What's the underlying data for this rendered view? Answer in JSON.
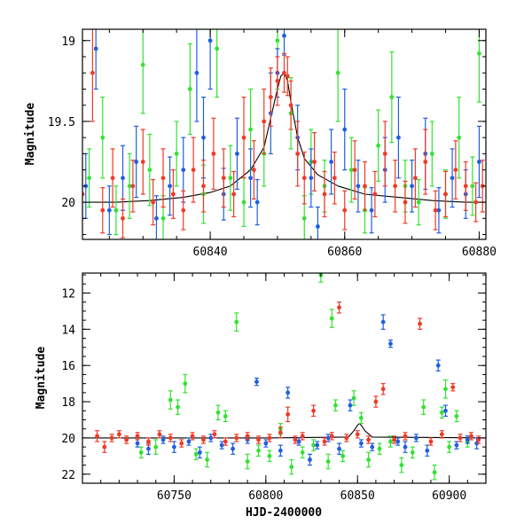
{
  "colors": {
    "green": "#33e233",
    "blue": "#1f5fe0",
    "red": "#f03a26",
    "model": "#000000"
  },
  "chart_data": [
    {
      "type": "scatter",
      "panel": "top",
      "title": "",
      "xlabel": "",
      "ylabel": "Magnitude",
      "xlim": [
        60821,
        60881
      ],
      "ylim": [
        20.23,
        18.93
      ],
      "y_inverted": true,
      "xticks": [
        "60840",
        "60860",
        "60880"
      ],
      "yticks": [
        "19",
        "19.5",
        "20"
      ],
      "grid": false,
      "legend": "none",
      "model_curve": {
        "x": [
          60821,
          60826,
          60831,
          60836,
          60840,
          60843,
          60846,
          60848,
          60849,
          60850,
          60850.5,
          60851,
          60851.5,
          60852,
          60853,
          60854,
          60856,
          60859,
          60863,
          60868,
          60873,
          60878,
          60881
        ],
        "y": [
          20.0,
          20.0,
          19.99,
          19.97,
          19.94,
          19.9,
          19.8,
          19.66,
          19.48,
          19.3,
          19.22,
          19.2,
          19.25,
          19.38,
          19.6,
          19.73,
          19.83,
          19.9,
          19.95,
          19.97,
          19.99,
          20.0,
          20.0
        ]
      },
      "series": [
        {
          "color": "green",
          "x": [
            60822,
            60824,
            60826,
            60828,
            60830,
            60831,
            60833,
            60835,
            60837,
            60839,
            60841,
            60843,
            60845,
            60846,
            60848,
            60850,
            60852,
            60854,
            60855,
            60857,
            60859,
            60861,
            60863,
            60865,
            60867,
            60869,
            60871,
            60873,
            60875,
            60877,
            60879,
            60880
          ],
          "y": [
            19.85,
            19.6,
            20.05,
            19.9,
            19.15,
            19.8,
            20.1,
            19.7,
            19.3,
            19.95,
            19.05,
            19.85,
            20.0,
            19.55,
            19.7,
            19.0,
            19.45,
            20.1,
            19.75,
            19.9,
            19.2,
            19.8,
            20.05,
            19.65,
            19.35,
            19.9,
            20.0,
            19.7,
            19.95,
            19.6,
            19.9,
            19.08
          ],
          "err": [
            0.18,
            0.25,
            0.15,
            0.2,
            0.3,
            0.22,
            0.14,
            0.2,
            0.28,
            0.18,
            0.3,
            0.2,
            0.15,
            0.25,
            0.2,
            0.3,
            0.22,
            0.14,
            0.2,
            0.16,
            0.3,
            0.2,
            0.14,
            0.22,
            0.28,
            0.16,
            0.14,
            0.2,
            0.15,
            0.25,
            0.18,
            0.3
          ]
        },
        {
          "color": "blue",
          "x": [
            60821.5,
            60823,
            60825,
            60827,
            60829,
            60832,
            60834,
            60836,
            60838,
            60839,
            60840,
            60842,
            60844,
            60846,
            60847,
            60849,
            60850,
            60851,
            60853,
            60855,
            60856,
            60858,
            60860,
            60862,
            60864,
            60866,
            60868,
            60870,
            60872,
            60874,
            60876,
            60878,
            60880
          ],
          "y": [
            19.9,
            19.05,
            20.05,
            19.85,
            19.75,
            20.1,
            19.9,
            19.8,
            19.2,
            19.6,
            19.0,
            19.95,
            19.7,
            19.85,
            20.0,
            19.45,
            19.2,
            18.97,
            19.6,
            19.85,
            20.15,
            19.75,
            19.55,
            19.9,
            20.05,
            19.8,
            19.6,
            19.9,
            19.7,
            20.05,
            19.85,
            19.95,
            19.75
          ],
          "err": [
            0.2,
            0.25,
            0.15,
            0.2,
            0.22,
            0.14,
            0.18,
            0.2,
            0.3,
            0.25,
            0.3,
            0.16,
            0.22,
            0.18,
            0.14,
            0.25,
            0.15,
            0.12,
            0.2,
            0.18,
            0.12,
            0.2,
            0.25,
            0.16,
            0.14,
            0.2,
            0.25,
            0.16,
            0.22,
            0.14,
            0.18,
            0.15,
            0.22
          ]
        },
        {
          "color": "red",
          "x": [
            60821,
            60822.5,
            60824,
            60825.5,
            60827,
            60828.5,
            60830,
            60831.5,
            60833,
            60834.5,
            60836,
            60837.5,
            60839,
            60840.5,
            60842,
            60843.5,
            60845,
            60846.5,
            60848,
            60849,
            60850,
            60851,
            60851.5,
            60852,
            60853,
            60854,
            60855.5,
            60857,
            60858.5,
            60860,
            60861.5,
            60863,
            60864.5,
            60866,
            60867.5,
            60869,
            60870.5,
            60872,
            60873.5,
            60875,
            60876.5,
            60878,
            60879.5,
            60880.5
          ],
          "y": [
            19.95,
            19.2,
            20.05,
            19.85,
            20.1,
            19.9,
            19.75,
            20.0,
            19.85,
            19.95,
            20.05,
            19.8,
            19.9,
            19.7,
            19.85,
            19.95,
            19.6,
            19.8,
            19.5,
            19.35,
            19.25,
            19.2,
            19.22,
            19.4,
            19.7,
            19.85,
            19.75,
            19.95,
            19.85,
            20.05,
            19.8,
            19.9,
            19.95,
            19.7,
            19.9,
            20.0,
            19.85,
            19.75,
            20.05,
            19.95,
            19.8,
            19.9,
            20.0,
            19.9
          ],
          "err": [
            0.15,
            0.3,
            0.14,
            0.18,
            0.12,
            0.16,
            0.2,
            0.14,
            0.18,
            0.15,
            0.12,
            0.2,
            0.16,
            0.22,
            0.18,
            0.14,
            0.25,
            0.18,
            0.2,
            0.18,
            0.15,
            0.12,
            0.12,
            0.15,
            0.2,
            0.16,
            0.18,
            0.14,
            0.16,
            0.12,
            0.18,
            0.15,
            0.14,
            0.2,
            0.16,
            0.13,
            0.18,
            0.2,
            0.12,
            0.14,
            0.18,
            0.15,
            0.12,
            0.16
          ]
        }
      ]
    },
    {
      "type": "scatter",
      "panel": "bottom",
      "title": "",
      "xlabel": "HJD-2400000",
      "ylabel": "Magnitude",
      "xlim": [
        60700,
        60920
      ],
      "ylim": [
        22.5,
        10.9
      ],
      "y_inverted": true,
      "xticks": [
        "60750",
        "60800",
        "60850",
        "60900"
      ],
      "yticks": [
        "12",
        "14",
        "16",
        "18",
        "20",
        "22"
      ],
      "grid": false,
      "legend": "none",
      "model_curve": {
        "x": [
          60700,
          60800,
          60845,
          60848,
          60850,
          60851,
          60852,
          60854,
          60858,
          60920
        ],
        "y": [
          20.0,
          20.0,
          19.95,
          19.6,
          19.3,
          19.2,
          19.3,
          19.6,
          19.95,
          20.0
        ]
      },
      "series": [
        {
          "color": "green",
          "x": [
            60732,
            60740,
            60748,
            60752,
            60756,
            60762,
            60768,
            60774,
            60778,
            60784,
            60790,
            60796,
            60802,
            60808,
            60814,
            60820,
            60826,
            60830,
            60834,
            60836,
            60838,
            60842,
            60848,
            60852,
            60856,
            60862,
            60868,
            60874,
            60880,
            60886,
            60892,
            60896,
            60898,
            60900,
            60904,
            60910
          ],
          "y": [
            20.8,
            20.5,
            17.9,
            18.3,
            17.0,
            20.9,
            21.2,
            18.6,
            18.8,
            13.6,
            21.3,
            20.7,
            21.0,
            19.5,
            21.6,
            20.8,
            20.4,
            11.0,
            21.3,
            13.4,
            18.2,
            21.0,
            17.8,
            18.9,
            21.2,
            20.6,
            20.2,
            21.5,
            20.8,
            18.3,
            21.9,
            18.6,
            17.3,
            20.5,
            18.8,
            20.2
          ],
          "err": [
            0.3,
            0.4,
            0.5,
            0.4,
            0.5,
            0.3,
            0.4,
            0.4,
            0.3,
            0.5,
            0.4,
            0.3,
            0.3,
            0.3,
            0.4,
            0.3,
            0.3,
            0.4,
            0.4,
            0.5,
            0.3,
            0.3,
            0.4,
            0.3,
            0.4,
            0.3,
            0.3,
            0.4,
            0.3,
            0.4,
            0.4,
            0.3,
            0.5,
            0.3,
            0.3,
            0.3
          ]
        },
        {
          "color": "blue",
          "x": [
            60730,
            60736,
            60744,
            60750,
            60758,
            60764,
            60770,
            60776,
            60782,
            60790,
            60795,
            60800,
            60808,
            60812,
            60818,
            60824,
            60828,
            60834,
            60840,
            60846,
            60852,
            60858,
            60864,
            60868,
            60872,
            60876,
            60882,
            60888,
            60894,
            60898,
            60904,
            60910,
            60915
          ],
          "y": [
            20.3,
            20.6,
            20.1,
            20.5,
            20.2,
            20.8,
            20.0,
            20.4,
            20.6,
            20.1,
            16.9,
            20.3,
            20.7,
            17.5,
            20.2,
            21.2,
            20.4,
            20.0,
            20.6,
            18.2,
            20.3,
            20.5,
            13.6,
            14.8,
            20.2,
            20.5,
            20.0,
            20.7,
            16.0,
            18.5,
            20.4,
            20.1,
            20.3
          ],
          "err": [
            0.2,
            0.3,
            0.2,
            0.3,
            0.2,
            0.3,
            0.2,
            0.2,
            0.3,
            0.2,
            0.2,
            0.2,
            0.3,
            0.3,
            0.2,
            0.3,
            0.2,
            0.2,
            0.3,
            0.3,
            0.2,
            0.2,
            0.4,
            0.2,
            0.2,
            0.3,
            0.2,
            0.3,
            0.3,
            0.3,
            0.2,
            0.2,
            0.3
          ]
        },
        {
          "color": "red",
          "x": [
            60708,
            60712,
            60716,
            60720,
            60724,
            60730,
            60736,
            60742,
            60748,
            60754,
            60760,
            60766,
            60772,
            60778,
            60784,
            60790,
            60796,
            60802,
            60808,
            60812,
            60816,
            60820,
            60826,
            60832,
            60836,
            60840,
            60844,
            60850,
            60856,
            60860,
            60864,
            60870,
            60876,
            60884,
            60890,
            60896,
            60902,
            60906,
            60912,
            60916
          ],
          "y": [
            19.9,
            20.5,
            20.0,
            19.8,
            20.1,
            19.9,
            20.2,
            19.8,
            20.0,
            20.3,
            19.9,
            20.1,
            19.8,
            20.2,
            20.0,
            19.9,
            20.1,
            20.0,
            19.7,
            18.7,
            20.1,
            19.9,
            18.5,
            20.2,
            19.9,
            12.8,
            20.0,
            19.8,
            20.1,
            18.0,
            17.3,
            20.1,
            19.9,
            13.7,
            20.2,
            19.8,
            17.2,
            20.0,
            19.9,
            20.1
          ],
          "err": [
            0.3,
            0.3,
            0.2,
            0.2,
            0.2,
            0.2,
            0.2,
            0.2,
            0.2,
            0.2,
            0.2,
            0.2,
            0.2,
            0.2,
            0.2,
            0.2,
            0.2,
            0.2,
            0.3,
            0.4,
            0.2,
            0.2,
            0.3,
            0.2,
            0.2,
            0.3,
            0.2,
            0.2,
            0.2,
            0.3,
            0.3,
            0.2,
            0.2,
            0.3,
            0.2,
            0.2,
            0.2,
            0.2,
            0.2,
            0.2
          ]
        }
      ]
    }
  ]
}
